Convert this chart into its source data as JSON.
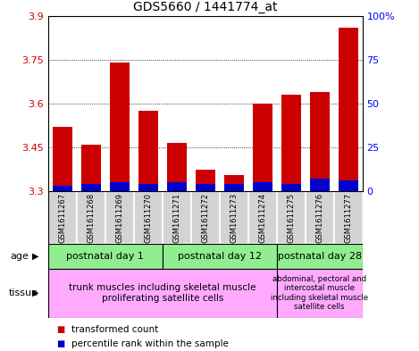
{
  "title": "GDS5660 / 1441774_at",
  "samples": [
    "GSM1611267",
    "GSM1611268",
    "GSM1611269",
    "GSM1611270",
    "GSM1611271",
    "GSM1611272",
    "GSM1611273",
    "GSM1611274",
    "GSM1611275",
    "GSM1611276",
    "GSM1611277"
  ],
  "transformed_count": [
    3.52,
    3.46,
    3.74,
    3.575,
    3.465,
    3.375,
    3.355,
    3.6,
    3.63,
    3.64,
    3.86
  ],
  "percentile_rank": [
    3,
    4,
    5,
    4,
    5,
    4,
    4,
    5,
    4,
    7,
    6
  ],
  "ymin": 3.3,
  "ymax": 3.9,
  "yticks_left": [
    3.3,
    3.45,
    3.6,
    3.75,
    3.9
  ],
  "yticks_right": [
    0,
    25,
    50,
    75,
    100
  ],
  "bar_color_red": "#cc0000",
  "bar_color_blue": "#0000cc",
  "base_value": 3.3,
  "percentile_scale": 0.006,
  "age_groups": [
    {
      "label": "postnatal day 1",
      "start": 0,
      "end": 4,
      "color": "#90ee90"
    },
    {
      "label": "postnatal day 12",
      "start": 4,
      "end": 8,
      "color": "#90ee90"
    },
    {
      "label": "postnatal day 28",
      "start": 8,
      "end": 11,
      "color": "#90ee90"
    }
  ],
  "tissue_groups": [
    {
      "label": "trunk muscles including skeletal muscle\nproliferating satellite cells",
      "start": 0,
      "end": 8,
      "color": "#ffaaff"
    },
    {
      "label": "abdominal, pectoral and\nintercostal muscle\nincluding skeletal muscle\nsatellite cells",
      "start": 8,
      "end": 11,
      "color": "#ffaaff"
    }
  ],
  "legend_transformed": "transformed count",
  "legend_percentile": "percentile rank within the sample",
  "age_label": "age",
  "tissue_label": "tissue",
  "sample_bg_color": "#d3d3d3"
}
